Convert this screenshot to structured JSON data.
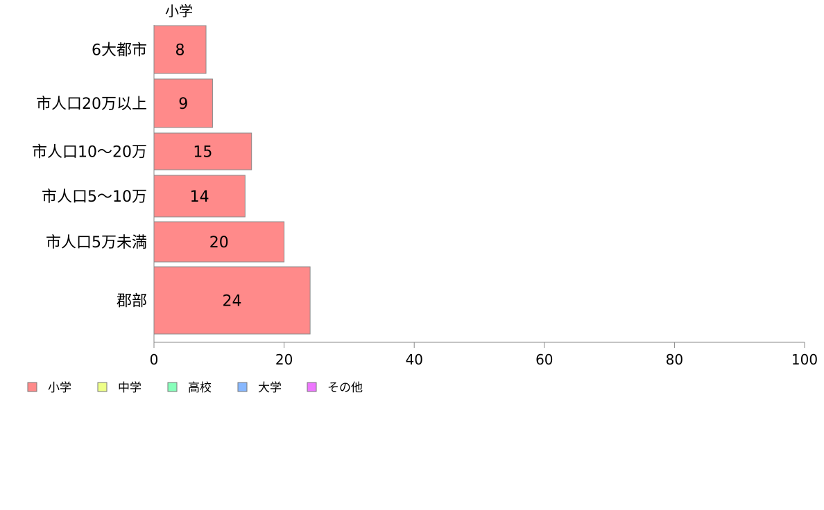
{
  "chart_data": {
    "type": "bar",
    "orientation": "horizontal",
    "stacked": true,
    "column_header": "小学",
    "categories": [
      "6大都市",
      "市人口20万以上",
      "市人口10〜20万",
      "市人口5〜10万",
      "市人口5万未満",
      "郡部"
    ],
    "series": [
      {
        "name": "小学",
        "color": "#ff8a8a",
        "values": [
          8,
          9,
          15,
          14,
          20,
          24
        ]
      },
      {
        "name": "中学",
        "color": "#eeff88",
        "values": [
          0,
          0,
          0,
          0,
          0,
          0
        ]
      },
      {
        "name": "高校",
        "color": "#88ffbb",
        "values": [
          0,
          0,
          0,
          0,
          0,
          0
        ]
      },
      {
        "name": "大学",
        "color": "#88b8ff",
        "values": [
          0,
          0,
          0,
          0,
          0,
          0
        ]
      },
      {
        "name": "その他",
        "color": "#ee77ff",
        "values": [
          0,
          0,
          0,
          0,
          0,
          0
        ]
      }
    ],
    "data_labels": [
      "8",
      "9",
      "15",
      "14",
      "20",
      "24"
    ],
    "xlim": [
      0,
      100
    ],
    "xticks": [
      "0",
      "20",
      "40",
      "60",
      "80",
      "100"
    ],
    "grid": false,
    "legend_position": "bottom-left"
  }
}
